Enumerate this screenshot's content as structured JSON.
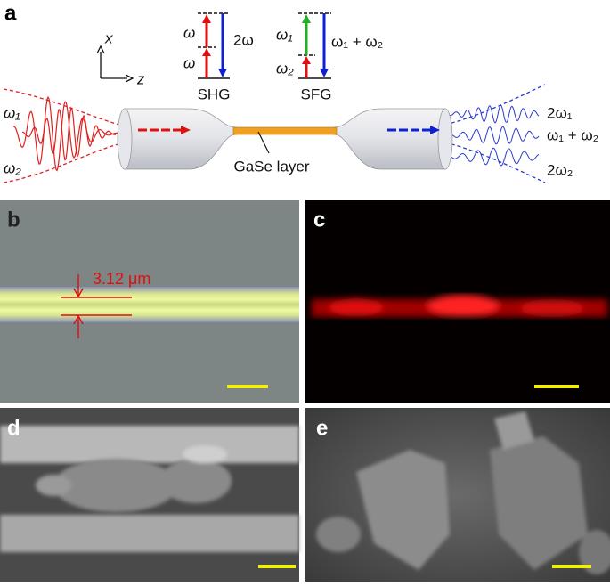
{
  "panel_labels": [
    "a",
    "b",
    "c",
    "d",
    "e"
  ],
  "panel_a": {
    "axes": [
      "x",
      "z"
    ],
    "inputs": [
      "ω₁",
      "ω₂"
    ],
    "shg": {
      "title": "SHG",
      "levels": [
        "ω",
        "ω"
      ],
      "output": "2ω"
    },
    "sfg": {
      "title": "SFG",
      "levels": [
        "ω₁",
        "ω₂"
      ],
      "output": "ω₁ + ω₂"
    },
    "material": "GaSe layer",
    "outputs": [
      "2ω₁",
      "ω₁ + ω₂",
      "2ω₂"
    ]
  },
  "panel_b": {
    "measurement": "3.12 μm"
  }
}
